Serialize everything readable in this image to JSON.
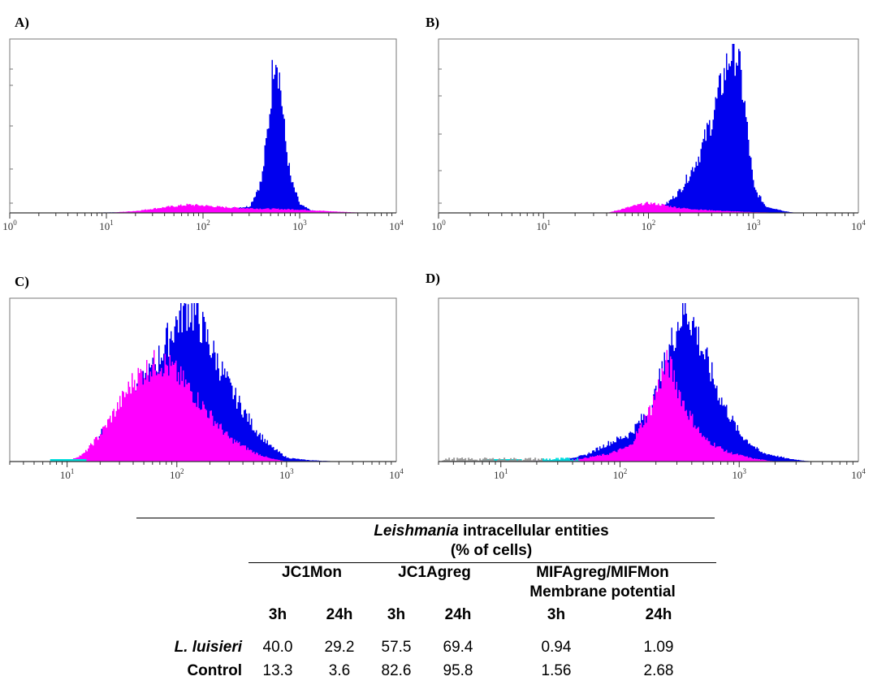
{
  "panels": [
    {
      "label": "A)"
    },
    {
      "label": "B)"
    },
    {
      "label": "C)"
    },
    {
      "label": "D)"
    }
  ],
  "chart_data": [
    {
      "type": "area",
      "xscale": "log",
      "xlim": [
        1,
        10000
      ],
      "tick_labels": [
        "10^0",
        "10^1",
        "10^2",
        "10^3",
        "10^4"
      ],
      "colors": {
        "treated": "#0000ee",
        "control": "#ff00ff"
      },
      "series": [
        {
          "points": [
            [
              3,
              0
            ],
            [
              15,
              0.4
            ],
            [
              30,
              1.2
            ],
            [
              60,
              2.2
            ],
            [
              100,
              2.8
            ],
            [
              150,
              3
            ],
            [
              200,
              3
            ],
            [
              300,
              4
            ],
            [
              400,
              20
            ],
            [
              480,
              60
            ],
            [
              530,
              95
            ],
            [
              560,
              100
            ],
            [
              620,
              80
            ],
            [
              700,
              45
            ],
            [
              800,
              20
            ],
            [
              1000,
              5
            ],
            [
              1300,
              1.5
            ],
            [
              2000,
              0.3
            ],
            [
              5000,
              0
            ]
          ]
        },
        {
          "points": [
            [
              10,
              0
            ],
            [
              20,
              1.2
            ],
            [
              40,
              3.5
            ],
            [
              70,
              5
            ],
            [
              100,
              4.5
            ],
            [
              150,
              3.6
            ],
            [
              250,
              3
            ],
            [
              400,
              2.6
            ],
            [
              600,
              2.4
            ],
            [
              1000,
              2
            ],
            [
              2000,
              1
            ],
            [
              5000,
              0
            ]
          ]
        }
      ]
    },
    {
      "type": "area",
      "xscale": "log",
      "xlim": [
        1,
        10000
      ],
      "tick_labels": [
        "10^0",
        "10^1",
        "10^2",
        "10^3",
        "10^4"
      ],
      "colors": {
        "treated": "#0000ee",
        "control": "#ff00ff"
      },
      "series": [
        {
          "points": [
            [
              50,
              0
            ],
            [
              100,
              2
            ],
            [
              150,
              6
            ],
            [
              200,
              14
            ],
            [
              250,
              25
            ],
            [
              300,
              35
            ],
            [
              400,
              58
            ],
            [
              500,
              80
            ],
            [
              600,
              98
            ],
            [
              650,
              100
            ],
            [
              700,
              95
            ],
            [
              800,
              70
            ],
            [
              900,
              40
            ],
            [
              1000,
              15
            ],
            [
              1300,
              4
            ],
            [
              2000,
              1
            ],
            [
              2500,
              0
            ]
          ]
        },
        {
          "points": [
            [
              40,
              0
            ],
            [
              60,
              3
            ],
            [
              80,
              5
            ],
            [
              100,
              6
            ],
            [
              130,
              5
            ],
            [
              160,
              4
            ],
            [
              200,
              3
            ],
            [
              300,
              2
            ],
            [
              600,
              1
            ],
            [
              1000,
              0.5
            ],
            [
              2000,
              0
            ]
          ]
        }
      ]
    },
    {
      "type": "area",
      "xscale": "log",
      "xlim": [
        3,
        10000
      ],
      "tick_labels": [
        "10^1",
        "10^2",
        "10^3",
        "10^4"
      ],
      "colors": {
        "treated": "#0000ee",
        "control": "#ff00ff",
        "gate": "#00dddd"
      },
      "series": [
        {
          "points": [
            [
              10,
              0
            ],
            [
              15,
              5
            ],
            [
              20,
              18
            ],
            [
              30,
              33
            ],
            [
              40,
              45
            ],
            [
              60,
              60
            ],
            [
              80,
              78
            ],
            [
              100,
              92
            ],
            [
              120,
              100
            ],
            [
              150,
              95
            ],
            [
              200,
              75
            ],
            [
              300,
              48
            ],
            [
              500,
              22
            ],
            [
              700,
              10
            ],
            [
              1000,
              2.5
            ],
            [
              1500,
              1
            ],
            [
              3000,
              0
            ]
          ]
        },
        {
          "points": [
            [
              10,
              0
            ],
            [
              14,
              5
            ],
            [
              20,
              18
            ],
            [
              30,
              38
            ],
            [
              40,
              53
            ],
            [
              60,
              63
            ],
            [
              70,
              65
            ],
            [
              90,
              60
            ],
            [
              120,
              50
            ],
            [
              200,
              30
            ],
            [
              300,
              15
            ],
            [
              500,
              6
            ],
            [
              700,
              2
            ],
            [
              1000,
              0
            ]
          ]
        }
      ]
    },
    {
      "type": "area",
      "xscale": "log",
      "xlim": [
        3,
        10000
      ],
      "tick_labels": [
        "10^1",
        "10^2",
        "10^3",
        "10^4"
      ],
      "colors": {
        "treated": "#0000ee",
        "control": "#ff00ff",
        "gate": "#00dddd",
        "background": "#999999"
      },
      "series": [
        {
          "points": [
            [
              10,
              0
            ],
            [
              30,
              1
            ],
            [
              50,
              4
            ],
            [
              80,
              12
            ],
            [
              120,
              18
            ],
            [
              180,
              35
            ],
            [
              250,
              70
            ],
            [
              300,
              90
            ],
            [
              350,
              100
            ],
            [
              400,
              92
            ],
            [
              500,
              70
            ],
            [
              700,
              40
            ],
            [
              1000,
              18
            ],
            [
              1500,
              6
            ],
            [
              2500,
              2
            ],
            [
              4000,
              0
            ]
          ]
        },
        {
          "points": [
            [
              10,
              0
            ],
            [
              40,
              1
            ],
            [
              80,
              5
            ],
            [
              120,
              10
            ],
            [
              180,
              35
            ],
            [
              220,
              55
            ],
            [
              250,
              65
            ],
            [
              280,
              55
            ],
            [
              350,
              35
            ],
            [
              500,
              15
            ],
            [
              800,
              6
            ],
            [
              1300,
              2
            ],
            [
              2000,
              0
            ]
          ]
        }
      ]
    }
  ],
  "table": {
    "title_italic": "Leishmania",
    "title_rest": " intracellular entities",
    "subtitle": "(% of cells)",
    "groups": [
      {
        "label": "JC1Mon"
      },
      {
        "label": "JC1Agreg"
      },
      {
        "label": "MIFAgreg/MIFMon"
      }
    ],
    "group3_line2": "Membrane potential",
    "times": [
      "3h",
      "24h",
      "3h",
      "24h",
      "3h",
      "24h"
    ],
    "rows": [
      {
        "label": "L. luisieri",
        "values": [
          "40.0",
          "29.2",
          "57.5",
          "69.4",
          "0.94",
          "1.09"
        ]
      },
      {
        "label": "Control",
        "values": [
          "13.3",
          "3.6",
          "82.6",
          "95.8",
          "1.56",
          "2.68"
        ]
      }
    ]
  }
}
